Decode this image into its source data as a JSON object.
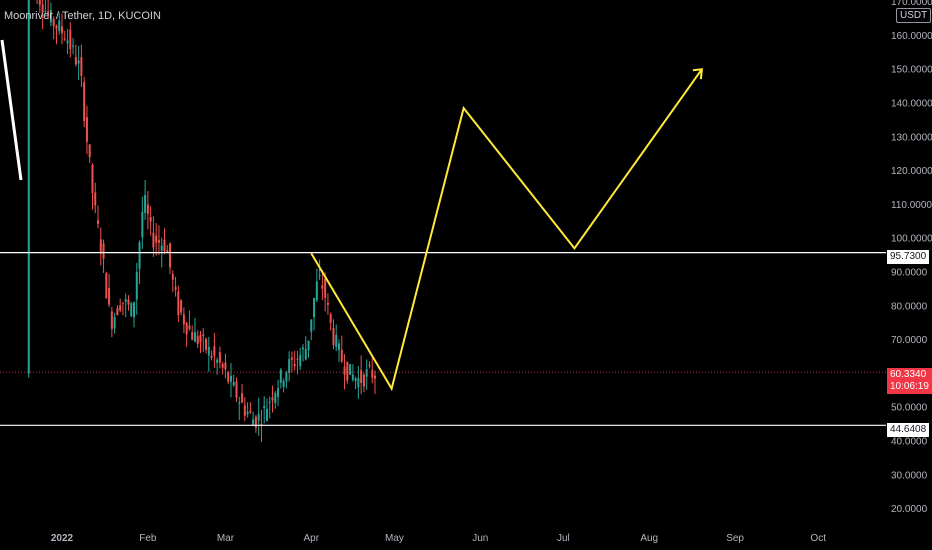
{
  "header": {
    "title": "Moonriver / Tether, 1D, KUCOIN"
  },
  "price_axis": {
    "currency": "USDT"
  },
  "price_tags": {
    "resistance": "95.7300",
    "support": "44.6408",
    "last_price": "60.3340",
    "countdown": "10:06:19"
  },
  "colors": {
    "background": "#000000",
    "bull": "#26a69a",
    "bear": "#ef5350",
    "drawing": "#ffe93b",
    "hline": "#ffffff",
    "last_price_line": "#f23645",
    "axis_text": "#b2b5be"
  },
  "chart_data": {
    "type": "candlestick",
    "title": "Moonriver / Tether, 1D, KUCOIN",
    "ylabel": "USDT",
    "ylim": [
      17,
      170
    ],
    "y_ticks": [
      "170.0000",
      "160.0000",
      "150.0000",
      "140.0000",
      "130.0000",
      "120.0000",
      "110.0000",
      "100.0000",
      "90.0000",
      "80.0000",
      "70.0000",
      "50.0000",
      "40.0000",
      "30.0000",
      "20.0000"
    ],
    "x_ticks": [
      "2022",
      "Feb",
      "Mar",
      "Apr",
      "May",
      "Jun",
      "Jul",
      "Aug",
      "Sep",
      "Oct"
    ],
    "horizontal_lines": [
      95.73,
      44.6408
    ],
    "last_price": 60.334,
    "candles_summary": "daily candles from late Dec 2021 to mid Apr 2022: from ~170 down to ~45 low in mid March, rebound to ~90 in early April, ~60 at last",
    "projection": [
      {
        "x": "2022-04-01",
        "y": 95.5
      },
      {
        "x": "2022-04-30",
        "y": 55.5
      },
      {
        "x": "2022-05-26",
        "y": 138.5
      },
      {
        "x": "2022-07-05",
        "y": 97
      },
      {
        "x": "2022-08-20",
        "y": 150
      }
    ],
    "grid": false
  }
}
